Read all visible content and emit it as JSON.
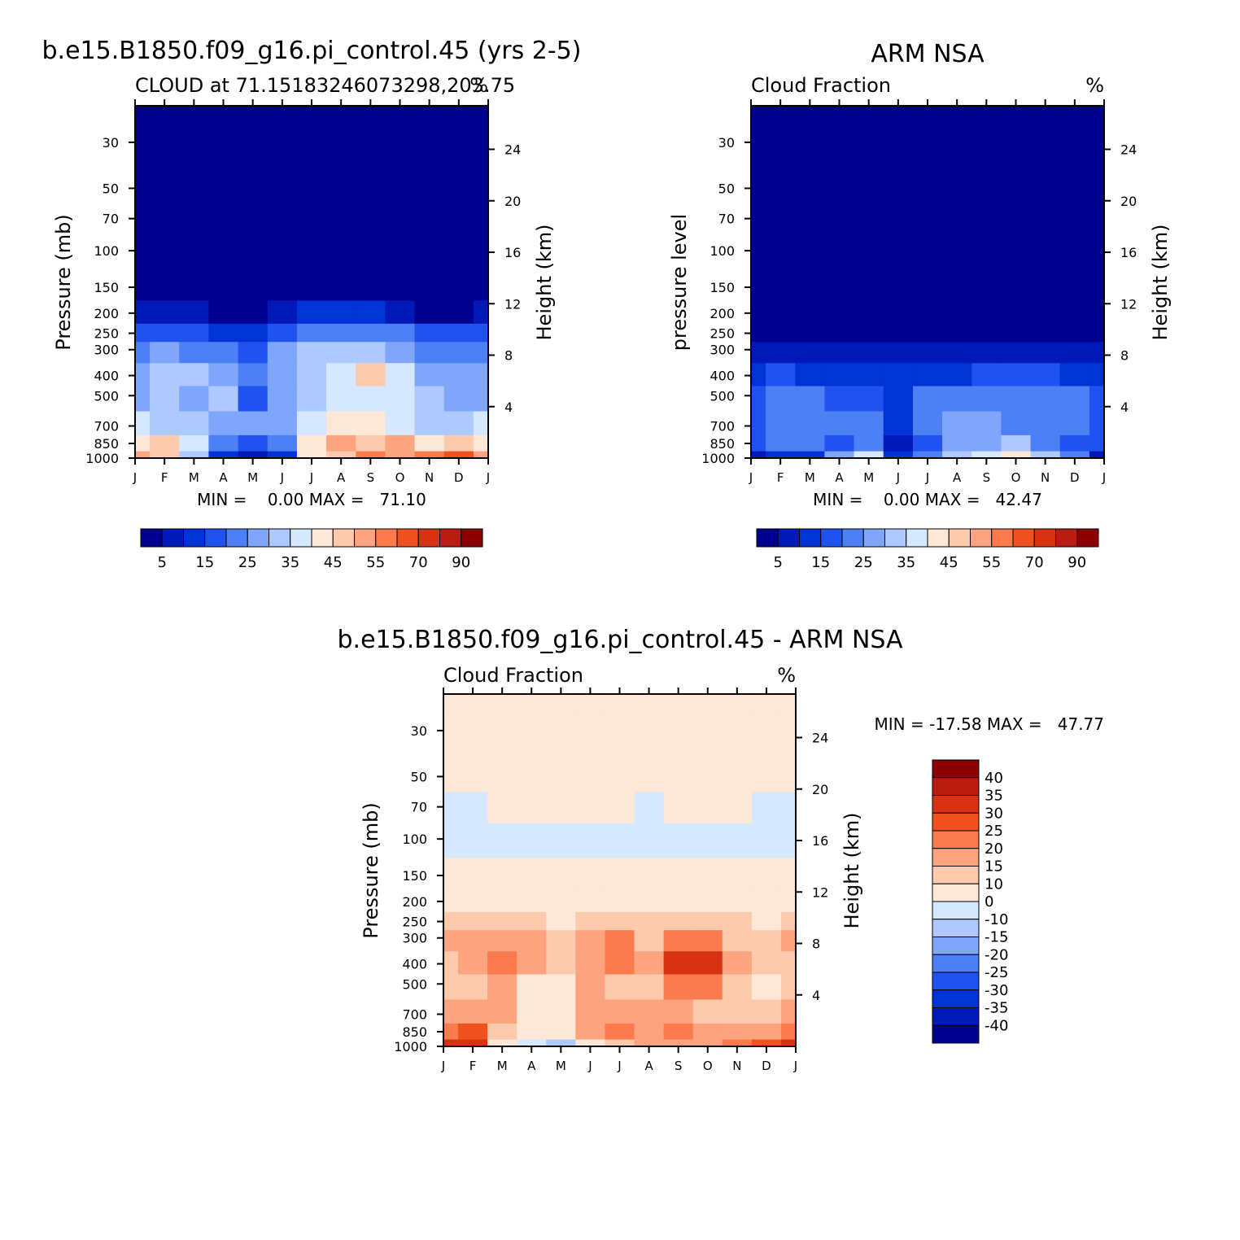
{
  "colors": {
    "levels_seq": [
      "#00008f",
      "#0019b8",
      "#0033d6",
      "#1f52ee",
      "#4d7ff5",
      "#7fa6fb",
      "#adc9fd",
      "#d5e8ff",
      "#fde7d7",
      "#fdcaae",
      "#fca37f",
      "#fb7a4e",
      "#f1501f",
      "#d73211",
      "#b81d0f",
      "#8b0000"
    ],
    "levels_diff": [
      "#00008f",
      "#0019b8",
      "#0033d6",
      "#1f52ee",
      "#4d7ff5",
      "#7fa6fb",
      "#adc9fd",
      "#d5e8ff",
      "#fde7d7",
      "#fdcaae",
      "#fca37f",
      "#fb7a4e",
      "#f1501f",
      "#d73211",
      "#b81d0f",
      "#8b0000"
    ]
  },
  "panels": [
    {
      "title": "b.e15.B1850.f09_g16.pi_control.45 (yrs 2-5)",
      "left_label": "CLOUD at 71.15183246073298,203.75",
      "right_label": "%",
      "ylabel": "Pressure (mb)",
      "ylabel_right": "Height (km)",
      "minmax": "MIN =    0.00 MAX =   71.10"
    },
    {
      "title": "ARM NSA",
      "left_label": "Cloud Fraction",
      "right_label": "%",
      "ylabel": "pressure level",
      "ylabel_right": "Height (km)",
      "minmax": "MIN =    0.00 MAX =   42.47"
    },
    {
      "title": "b.e15.B1850.f09_g16.pi_control.45 - ARM NSA",
      "left_label": "Cloud Fraction",
      "right_label": "%",
      "ylabel": "Pressure (mb)",
      "ylabel_right": "Height (km)",
      "minmax": "MIN = -17.58 MAX =   47.77"
    }
  ],
  "colorbar_seq_labels": [
    "5",
    "15",
    "25",
    "35",
    "45",
    "55",
    "70",
    "90"
  ],
  "colorbar_diff_labels": [
    "40",
    "35",
    "30",
    "25",
    "20",
    "15",
    "10",
    "0",
    "-10",
    "-15",
    "-20",
    "-25",
    "-30",
    "-35",
    "-40"
  ],
  "chart_data": [
    {
      "type": "heatmap",
      "title": "b.e15.B1850.f09_g16.pi_control.45 (yrs 2-5)",
      "subtitle": "CLOUD at 71.15183246073298,203.75",
      "units": "%",
      "ylabel": "Pressure (mb)",
      "ylabel_right": "Height (km)",
      "x_ticks": [
        "J",
        "F",
        "M",
        "A",
        "M",
        "J",
        "J",
        "A",
        "S",
        "O",
        "N",
        "D",
        "J"
      ],
      "y_ticks": [
        30,
        50,
        70,
        100,
        150,
        200,
        250,
        300,
        400,
        500,
        700,
        850,
        1000
      ],
      "y_right_ticks": [
        4,
        8,
        12,
        16,
        20,
        24
      ],
      "yscale": "log",
      "min": 0.0,
      "max": 71.1,
      "pressure_levels": [
        1000,
        850,
        700,
        500,
        400,
        300,
        250,
        200,
        150,
        100,
        70,
        50,
        30,
        20
      ],
      "values": [
        [
          52,
          48,
          30,
          12,
          8,
          12,
          40,
          48,
          55,
          50,
          55,
          60,
          52
        ],
        [
          42,
          48,
          35,
          20,
          15,
          20,
          42,
          50,
          48,
          50,
          40,
          45,
          42
        ],
        [
          35,
          33,
          32,
          28,
          25,
          28,
          35,
          40,
          40,
          38,
          32,
          30,
          35
        ],
        [
          28,
          30,
          28,
          30,
          16,
          28,
          32,
          35,
          38,
          35,
          30,
          25,
          28
        ],
        [
          25,
          30,
          33,
          28,
          22,
          28,
          32,
          36,
          45,
          35,
          28,
          25,
          25
        ],
        [
          22,
          25,
          22,
          20,
          18,
          25,
          32,
          30,
          33,
          28,
          22,
          20,
          22
        ],
        [
          18,
          18,
          16,
          14,
          14,
          18,
          20,
          20,
          20,
          20,
          16,
          15,
          18
        ],
        [
          8,
          8,
          6,
          4,
          4,
          8,
          10,
          10,
          10,
          8,
          4,
          4,
          8
        ],
        [
          1,
          1,
          1,
          1,
          1,
          1,
          1,
          1,
          1,
          1,
          1,
          1,
          1
        ],
        [
          0,
          0,
          0,
          0,
          0,
          0,
          0,
          0,
          0,
          0,
          0,
          0,
          0
        ],
        [
          0,
          0,
          0,
          0,
          0,
          0,
          0,
          0,
          0,
          0,
          0,
          0,
          0
        ],
        [
          0,
          0,
          0,
          0,
          0,
          0,
          0,
          0,
          0,
          0,
          0,
          0,
          0
        ],
        [
          0,
          0,
          0,
          0,
          0,
          0,
          0,
          0,
          0,
          0,
          0,
          0,
          0
        ],
        [
          0,
          0,
          0,
          0,
          0,
          0,
          0,
          0,
          0,
          0,
          0,
          0,
          0
        ]
      ]
    },
    {
      "type": "heatmap",
      "title": "ARM NSA",
      "subtitle": "Cloud Fraction",
      "units": "%",
      "ylabel": "pressure level",
      "ylabel_right": "Height (km)",
      "x_ticks": [
        "J",
        "F",
        "M",
        "A",
        "M",
        "J",
        "J",
        "A",
        "S",
        "O",
        "N",
        "D",
        "J"
      ],
      "y_ticks": [
        30,
        50,
        70,
        100,
        150,
        200,
        250,
        300,
        400,
        500,
        700,
        850,
        1000
      ],
      "y_right_ticks": [
        4,
        8,
        12,
        16,
        20,
        24
      ],
      "yscale": "log",
      "min": 0.0,
      "max": 42.47,
      "pressure_levels": [
        1000,
        850,
        700,
        500,
        400,
        300,
        250,
        200,
        150,
        100,
        70,
        50,
        30,
        20
      ],
      "values": [
        [
          5,
          10,
          10,
          25,
          35,
          12,
          20,
          30,
          35,
          40,
          30,
          20,
          5
        ],
        [
          16,
          20,
          20,
          18,
          20,
          8,
          18,
          25,
          28,
          30,
          22,
          16,
          16
        ],
        [
          18,
          22,
          22,
          20,
          22,
          14,
          20,
          25,
          25,
          24,
          22,
          20,
          18
        ],
        [
          18,
          20,
          20,
          18,
          16,
          14,
          20,
          20,
          20,
          22,
          22,
          20,
          18
        ],
        [
          14,
          15,
          14,
          12,
          12,
          10,
          12,
          14,
          15,
          15,
          15,
          14,
          14
        ],
        [
          8,
          8,
          6,
          5,
          5,
          6,
          6,
          8,
          8,
          7,
          6,
          6,
          8
        ],
        [
          2,
          2,
          2,
          2,
          2,
          2,
          2,
          3,
          3,
          2,
          2,
          2,
          2
        ],
        [
          0,
          0,
          0,
          0,
          0,
          0,
          0,
          0,
          0,
          0,
          0,
          0,
          0
        ],
        [
          0,
          0,
          0,
          0,
          0,
          0,
          0,
          0,
          0,
          0,
          0,
          0,
          0
        ],
        [
          0,
          0,
          0,
          0,
          0,
          0,
          0,
          0,
          0,
          0,
          0,
          0,
          0
        ],
        [
          0,
          0,
          0,
          0,
          0,
          0,
          0,
          0,
          0,
          0,
          0,
          0,
          0
        ],
        [
          0,
          0,
          0,
          0,
          0,
          0,
          0,
          0,
          0,
          0,
          0,
          0,
          0
        ],
        [
          0,
          0,
          0,
          0,
          0,
          0,
          0,
          0,
          0,
          0,
          0,
          0,
          0
        ],
        [
          0,
          0,
          0,
          0,
          0,
          0,
          0,
          0,
          0,
          0,
          0,
          0,
          0
        ]
      ]
    },
    {
      "type": "heatmap",
      "title": "b.e15.B1850.f09_g16.pi_control.45 - ARM NSA",
      "subtitle": "Cloud Fraction",
      "units": "%",
      "ylabel": "Pressure (mb)",
      "ylabel_right": "Height (km)",
      "x_ticks": [
        "J",
        "F",
        "M",
        "A",
        "M",
        "J",
        "J",
        "A",
        "S",
        "O",
        "N",
        "D",
        "J"
      ],
      "y_ticks": [
        30,
        50,
        70,
        100,
        150,
        200,
        250,
        300,
        400,
        500,
        700,
        850,
        1000
      ],
      "y_right_ticks": [
        4,
        8,
        12,
        16,
        20,
        24
      ],
      "yscale": "log",
      "min": -17.58,
      "max": 47.77,
      "pressure_levels": [
        1000,
        850,
        700,
        500,
        400,
        300,
        250,
        200,
        150,
        100,
        70,
        50,
        30,
        20
      ],
      "values": [
        [
          30,
          30,
          8,
          -8,
          -14,
          5,
          12,
          15,
          18,
          15,
          22,
          28,
          30
        ],
        [
          22,
          25,
          14,
          5,
          5,
          18,
          20,
          18,
          20,
          18,
          15,
          18,
          22
        ],
        [
          15,
          18,
          16,
          5,
          3,
          15,
          16,
          15,
          15,
          14,
          12,
          10,
          15
        ],
        [
          12,
          14,
          16,
          8,
          6,
          16,
          14,
          12,
          20,
          20,
          12,
          8,
          12
        ],
        [
          14,
          16,
          22,
          15,
          12,
          18,
          22,
          18,
          30,
          30,
          18,
          14,
          14
        ],
        [
          15,
          16,
          18,
          15,
          12,
          16,
          20,
          14,
          22,
          22,
          14,
          12,
          15
        ],
        [
          10,
          10,
          10,
          10,
          8,
          10,
          12,
          10,
          12,
          12,
          10,
          8,
          10
        ],
        [
          5,
          5,
          5,
          5,
          5,
          5,
          5,
          5,
          5,
          5,
          5,
          5,
          5
        ],
        [
          5,
          5,
          4,
          3,
          2,
          3,
          4,
          4,
          4,
          4,
          2,
          3,
          5
        ],
        [
          -2,
          -2,
          -2,
          -4,
          -4,
          -4,
          -4,
          -4,
          -4,
          -4,
          -4,
          -2,
          -2
        ],
        [
          -2,
          -2,
          3,
          3,
          3,
          3,
          3,
          -3,
          3,
          3,
          3,
          -2,
          -2
        ],
        [
          3,
          3,
          3,
          3,
          3,
          3,
          3,
          3,
          3,
          3,
          3,
          3,
          3
        ],
        [
          3,
          3,
          3,
          3,
          3,
          3,
          3,
          3,
          3,
          3,
          3,
          3,
          3
        ],
        [
          3,
          3,
          3,
          3,
          3,
          3,
          3,
          3,
          3,
          3,
          3,
          3,
          3
        ]
      ]
    }
  ]
}
